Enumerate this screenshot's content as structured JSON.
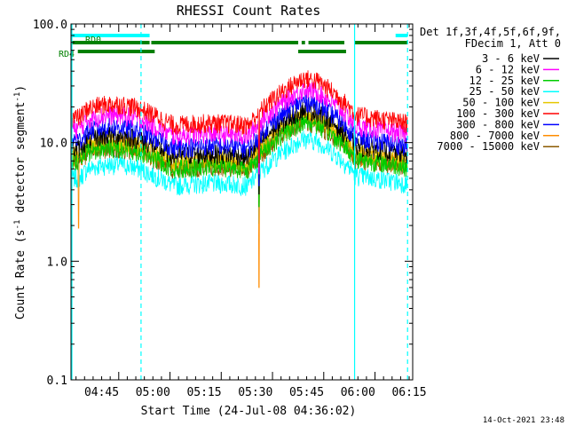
{
  "chart_data": {
    "type": "line",
    "title": "RHESSI Count Rates",
    "xlabel": "Start Time (24-Jul-08 04:36:02)",
    "ylabel": "Count Rate (s",
    "ylabel_sup": "-1",
    "ylabel_tail": " detector segment",
    "ylabel_sup2": "-1",
    "ylabel_close": ")",
    "y_scale": "log",
    "ylim": [
      0.1,
      100
    ],
    "xlim_minutes": [
      0,
      100
    ],
    "y_ticks": [
      {
        "value": 0.1,
        "label": "0.1"
      },
      {
        "value": 1,
        "label": "1.0"
      },
      {
        "value": 10,
        "label": "10.0"
      },
      {
        "value": 100,
        "label": "100.0"
      }
    ],
    "x_ticks": [
      {
        "minute": 8.97,
        "label": "04:45"
      },
      {
        "minute": 23.97,
        "label": "05:00"
      },
      {
        "minute": 38.97,
        "label": "05:15"
      },
      {
        "minute": 53.97,
        "label": "05:30"
      },
      {
        "minute": 68.97,
        "label": "05:45"
      },
      {
        "minute": 83.97,
        "label": "06:00"
      },
      {
        "minute": 98.97,
        "label": "06:15"
      }
    ],
    "legend": {
      "placement": "right",
      "header": [
        "Det 1f,3f,4f,5f,6f,9f,",
        "FDecim 1, Att 0"
      ]
    },
    "series": [
      {
        "name": "3 - 6 keV",
        "color": "#000000",
        "base": 11.5
      },
      {
        "name": "6 - 12 keV",
        "color": "#ff00ff",
        "base": 17.0
      },
      {
        "name": "12 - 25 keV",
        "color": "#00cc00",
        "base": 9.0
      },
      {
        "name": "25 - 50 keV",
        "color": "#00ffff",
        "base": 6.5
      },
      {
        "name": "50 - 100 keV",
        "color": "#e6c800",
        "base": 10.2
      },
      {
        "name": "100 - 300 keV",
        "color": "#ff0000",
        "base": 21.0
      },
      {
        "name": "300 - 800 keV",
        "color": "#0000ff",
        "base": 13.5
      },
      {
        "name": "800 - 7000 keV",
        "color": "#ff8c00",
        "base": 9.6
      },
      {
        "name": "7000 - 15000 keV",
        "color": "#8b5a00",
        "base": 9.0
      }
    ],
    "flags": [
      {
        "label": "RD0",
        "color": "#00ffff",
        "segments": [
          [
            0,
            23
          ],
          [
            95,
            98.5
          ]
        ]
      },
      {
        "label": "",
        "color": "#008000",
        "segments": [
          [
            0,
            23
          ],
          [
            23.5,
            66.5
          ],
          [
            67.5,
            68.5
          ],
          [
            69.5,
            80
          ],
          [
            83,
            98.5
          ]
        ]
      },
      {
        "label": "RD4",
        "color": "#008000",
        "segments": [
          [
            2,
            24.5
          ],
          [
            66.5,
            80.5
          ]
        ]
      }
    ],
    "solid_cyan_lines_minutes": [
      0,
      83
    ],
    "dashed_cyan_lines_minutes": [
      20.5,
      98.5
    ],
    "footer_date": "14-Oct-2021 23:48"
  }
}
